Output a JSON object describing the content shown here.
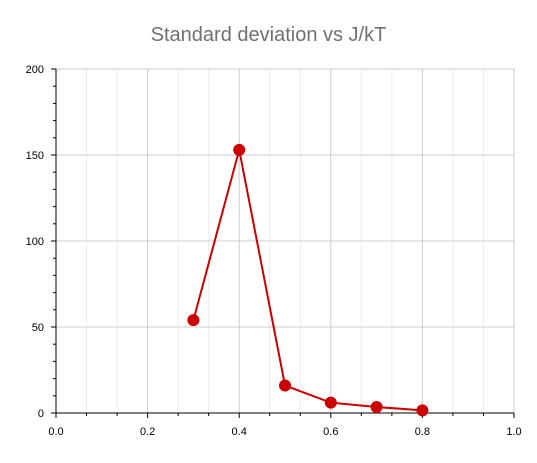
{
  "chart_data": {
    "type": "line",
    "title": "Standard deviation vs J/kT",
    "xlabel": "",
    "ylabel": "",
    "xlim": [
      0.0,
      1.0
    ],
    "ylim": [
      0,
      200
    ],
    "x_ticks": [
      0.0,
      0.2,
      0.4,
      0.6,
      0.8,
      1.0
    ],
    "x_tick_labels": [
      "0.0",
      "0.2",
      "0.4",
      "0.6",
      "0.8",
      "1.0"
    ],
    "y_ticks": [
      0,
      50,
      100,
      150,
      200
    ],
    "y_tick_labels": [
      "0",
      "50",
      "100",
      "150",
      "200"
    ],
    "grid": true,
    "legend": "none",
    "series": [
      {
        "color": "#cc0000",
        "x": [
          0.3,
          0.4,
          0.5,
          0.6,
          0.7,
          0.8
        ],
        "y": [
          54,
          153,
          16,
          6,
          3.5,
          1.5
        ]
      }
    ]
  }
}
